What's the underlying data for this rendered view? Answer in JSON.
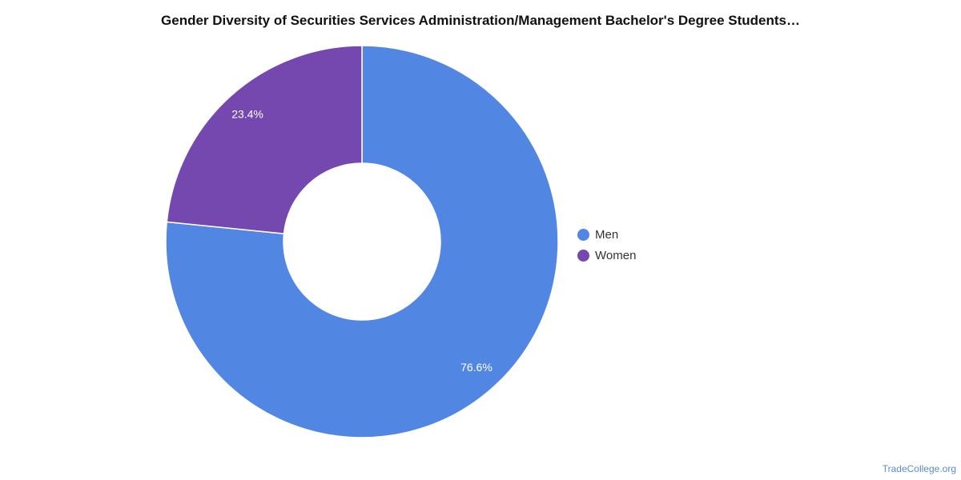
{
  "chart_data": {
    "type": "pie",
    "donut": true,
    "title": "Gender Diversity of Securities Services Administration/Management Bachelor's Degree Students…",
    "series": [
      {
        "name": "Men",
        "value": 76.6,
        "label": "76.6%",
        "color": "#5286e3"
      },
      {
        "name": "Women",
        "value": 23.4,
        "label": "23.4%",
        "color": "#7548b0"
      }
    ],
    "legend_position": "right"
  },
  "source": "TradeCollege.org"
}
